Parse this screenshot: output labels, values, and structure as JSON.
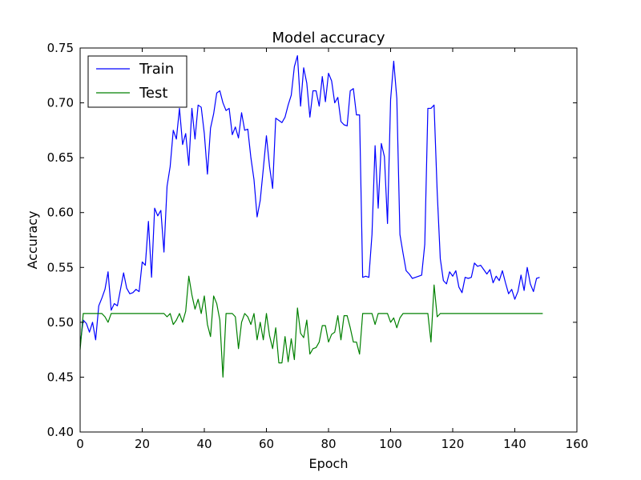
{
  "chart_data": {
    "type": "line",
    "title": "Model accuracy",
    "xlabel": "Epoch",
    "ylabel": "Accuracy",
    "xlim": [
      0,
      160
    ],
    "ylim": [
      0.4,
      0.75
    ],
    "xticks": [
      0,
      20,
      40,
      60,
      80,
      100,
      120,
      140,
      160
    ],
    "yticks": [
      0.4,
      0.45,
      0.5,
      0.55,
      0.6,
      0.65,
      0.7,
      0.75
    ],
    "xtick_labels": [
      "0",
      "20",
      "40",
      "60",
      "80",
      "100",
      "120",
      "140",
      "160"
    ],
    "ytick_labels": [
      "0.40",
      "0.45",
      "0.50",
      "0.55",
      "0.60",
      "0.65",
      "0.70",
      "0.75"
    ],
    "grid": false,
    "legend_position": "top-left",
    "series": [
      {
        "name": "Train",
        "color": "#0000ff",
        "values": [
          0.479,
          0.502,
          0.499,
          0.491,
          0.5,
          0.484,
          0.515,
          0.522,
          0.53,
          0.546,
          0.511,
          0.517,
          0.515,
          0.53,
          0.545,
          0.531,
          0.526,
          0.527,
          0.53,
          0.528,
          0.555,
          0.552,
          0.592,
          0.541,
          0.604,
          0.597,
          0.602,
          0.564,
          0.624,
          0.642,
          0.675,
          0.667,
          0.695,
          0.662,
          0.672,
          0.643,
          0.695,
          0.667,
          0.698,
          0.696,
          0.672,
          0.635,
          0.677,
          0.69,
          0.709,
          0.711,
          0.7,
          0.693,
          0.695,
          0.671,
          0.678,
          0.668,
          0.691,
          0.675,
          0.676,
          0.65,
          0.63,
          0.596,
          0.611,
          0.64,
          0.67,
          0.642,
          0.622,
          0.686,
          0.684,
          0.682,
          0.687,
          0.698,
          0.707,
          0.733,
          0.743,
          0.697,
          0.732,
          0.718,
          0.687,
          0.711,
          0.711,
          0.697,
          0.724,
          0.701,
          0.727,
          0.72,
          0.7,
          0.705,
          0.683,
          0.68,
          0.679,
          0.711,
          0.713,
          0.689,
          0.689,
          0.541,
          0.542,
          0.541,
          0.58,
          0.661,
          0.604,
          0.663,
          0.651,
          0.59,
          0.703,
          0.738,
          0.704,
          0.58,
          0.563,
          0.547,
          0.544,
          0.54,
          0.541,
          0.542,
          0.543,
          0.571,
          0.695,
          0.695,
          0.698,
          0.619,
          0.558,
          0.538,
          0.535,
          0.546,
          0.542,
          0.547,
          0.532,
          0.527,
          0.541,
          0.54,
          0.541,
          0.554,
          0.551,
          0.552,
          0.548,
          0.544,
          0.548,
          0.536,
          0.542,
          0.538,
          0.547,
          0.536,
          0.526,
          0.53,
          0.521,
          0.528,
          0.543,
          0.529,
          0.55,
          0.535,
          0.528,
          0.54,
          0.541
        ]
      },
      {
        "name": "Test",
        "color": "#008000",
        "values": [
          0.475,
          0.508,
          0.508,
          0.508,
          0.508,
          0.508,
          0.508,
          0.508,
          0.505,
          0.5,
          0.508,
          0.508,
          0.508,
          0.508,
          0.508,
          0.508,
          0.508,
          0.508,
          0.508,
          0.508,
          0.508,
          0.508,
          0.508,
          0.508,
          0.508,
          0.508,
          0.508,
          0.508,
          0.505,
          0.508,
          0.498,
          0.502,
          0.508,
          0.5,
          0.51,
          0.542,
          0.525,
          0.512,
          0.521,
          0.508,
          0.524,
          0.498,
          0.487,
          0.524,
          0.517,
          0.502,
          0.45,
          0.508,
          0.508,
          0.508,
          0.505,
          0.476,
          0.5,
          0.508,
          0.505,
          0.498,
          0.508,
          0.484,
          0.5,
          0.484,
          0.508,
          0.488,
          0.476,
          0.495,
          0.463,
          0.463,
          0.487,
          0.464,
          0.485,
          0.466,
          0.513,
          0.49,
          0.486,
          0.502,
          0.471,
          0.476,
          0.477,
          0.482,
          0.497,
          0.497,
          0.482,
          0.489,
          0.491,
          0.506,
          0.484,
          0.506,
          0.506,
          0.495,
          0.482,
          0.482,
          0.471,
          0.508,
          0.508,
          0.508,
          0.508,
          0.498,
          0.508,
          0.508,
          0.508,
          0.508,
          0.5,
          0.504,
          0.495,
          0.504,
          0.508,
          0.508,
          0.508,
          0.508,
          0.508,
          0.508,
          0.508,
          0.508,
          0.508,
          0.482,
          0.534,
          0.505,
          0.508,
          0.508,
          0.508,
          0.508,
          0.508,
          0.508,
          0.508,
          0.508,
          0.508,
          0.508,
          0.508,
          0.508,
          0.508,
          0.508,
          0.508,
          0.508,
          0.508,
          0.508,
          0.508,
          0.508,
          0.508,
          0.508,
          0.508,
          0.508,
          0.508,
          0.508,
          0.508,
          0.508,
          0.508,
          0.508,
          0.508,
          0.508,
          0.508,
          0.508
        ]
      }
    ]
  }
}
